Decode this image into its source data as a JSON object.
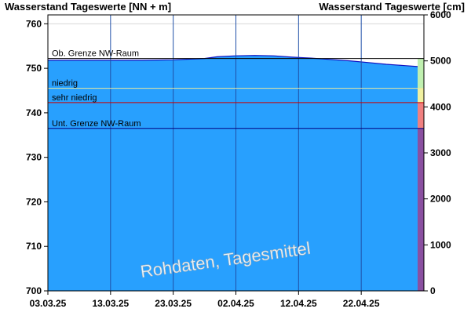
{
  "chart_data": {
    "type": "area",
    "title_left": "Wasserstand Tageswerte [NN + m]",
    "title_right": "Wasserstand Tageswerte [cm]",
    "y_left": {
      "ylim": [
        700,
        762
      ],
      "ticks": [
        700,
        710,
        720,
        730,
        740,
        750,
        760
      ]
    },
    "y_right": {
      "ylim": [
        0,
        6000
      ],
      "ticks": [
        0,
        1000,
        2000,
        3000,
        4000,
        5000,
        6000
      ]
    },
    "x": {
      "start": "03.03.25",
      "end": "02.05.25",
      "ticks": [
        "03.03.25",
        "13.03.25",
        "23.03.25",
        "02.04.25",
        "12.04.25",
        "22.04.25"
      ]
    },
    "grid": true,
    "series": [
      {
        "points": [
          [
            "03.03.25",
            751.8
          ],
          [
            "08.03.25",
            751.8
          ],
          [
            "13.03.25",
            751.8
          ],
          [
            "18.03.25",
            751.8
          ],
          [
            "23.03.25",
            751.9
          ],
          [
            "28.03.25",
            752.2
          ],
          [
            "30.03.25",
            752.6
          ],
          [
            "02.04.25",
            752.8
          ],
          [
            "05.04.25",
            752.9
          ],
          [
            "08.04.25",
            752.8
          ],
          [
            "11.04.25",
            752.5
          ],
          [
            "14.04.25",
            752.3
          ],
          [
            "17.04.25",
            752.0
          ],
          [
            "20.04.25",
            751.7
          ],
          [
            "23.04.25",
            751.3
          ],
          [
            "26.04.25",
            750.9
          ],
          [
            "29.04.25",
            750.6
          ],
          [
            "01.05.25",
            750.4
          ]
        ]
      }
    ],
    "reference_lines": [
      {
        "label": "Ob. Grenze NW-Raum",
        "value": 752.2,
        "color": "#000000"
      },
      {
        "label": "niedrig",
        "value": 745.5,
        "color": "#e8e8a0"
      },
      {
        "label": "sehr niedrig",
        "value": 742.3,
        "color": "#cc0000"
      },
      {
        "label": "Unt. Grenze NW-Raum",
        "value": 736.5,
        "color": "#000080"
      }
    ],
    "status_bar": [
      {
        "from": 752.2,
        "to": 745.5,
        "color": "#c0f0b0"
      },
      {
        "from": 745.5,
        "to": 742.3,
        "color": "#f0f0a0"
      },
      {
        "from": 742.3,
        "to": 736.5,
        "color": "#f08080"
      },
      {
        "from": 736.5,
        "to": 700,
        "color": "#8a50a0"
      }
    ],
    "colors": {
      "fill": "#28a0fe",
      "line": "#1010c0",
      "grid": "#2050a8"
    },
    "watermark": "Rohdaten, Tagesmittel"
  }
}
